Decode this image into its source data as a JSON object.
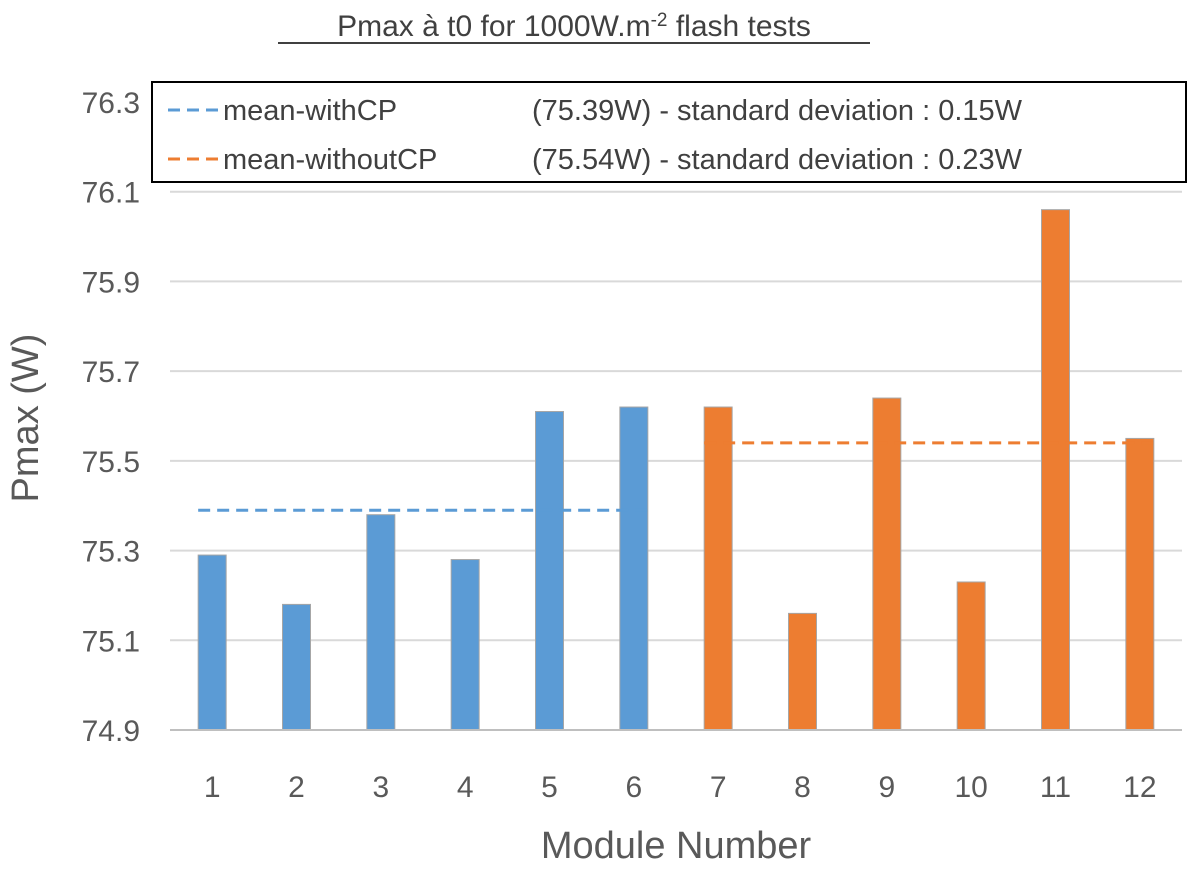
{
  "chart_data": {
    "type": "bar",
    "title": {
      "main": "Pmax à t0 for 1000W.m",
      "superscript": "-2",
      "suffix": " flash tests"
    },
    "xlabel": "Module Number",
    "ylabel": "Pmax (W)",
    "ylim": [
      74.9,
      76.3
    ],
    "yticks": [
      "74.9",
      "75.1",
      "75.3",
      "75.5",
      "75.7",
      "75.9",
      "76.1",
      "76.3"
    ],
    "grid": true,
    "categories": [
      "1",
      "2",
      "3",
      "4",
      "5",
      "6",
      "7",
      "8",
      "9",
      "10",
      "11",
      "12"
    ],
    "values": [
      75.29,
      75.18,
      75.38,
      75.28,
      75.61,
      75.62,
      75.62,
      75.16,
      75.64,
      75.23,
      76.06,
      75.55
    ],
    "bar_colors": [
      "#5b9bd5",
      "#5b9bd5",
      "#5b9bd5",
      "#5b9bd5",
      "#5b9bd5",
      "#5b9bd5",
      "#ed7d31",
      "#ed7d31",
      "#ed7d31",
      "#ed7d31",
      "#ed7d31",
      "#ed7d31"
    ],
    "mean_lines": [
      {
        "name": "mean-withCP",
        "detail": "(75.39W) - standard deviation : 0.15W",
        "value": 75.39,
        "from_category": "1",
        "to_category": "6",
        "color": "#5b9bd5",
        "style": "dashed"
      },
      {
        "name": "mean-withoutCP",
        "detail": "(75.54W) - standard deviation : 0.23W",
        "value": 75.54,
        "from_category": "7",
        "to_category": "12",
        "color": "#ed7d31",
        "style": "dashed"
      }
    ],
    "legend_position": "top",
    "gridline_color": "#d9d9d9",
    "axis_color": "#bfbfbf",
    "bar_outline_color": "#a6a6a6"
  }
}
